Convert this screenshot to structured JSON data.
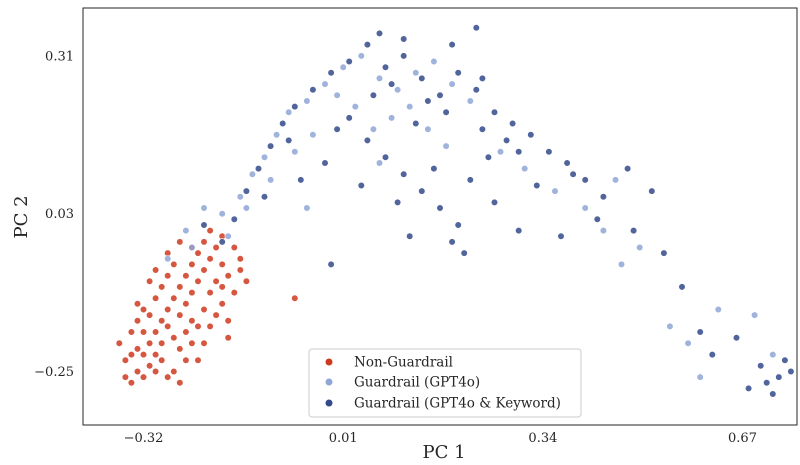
{
  "chart_data": {
    "type": "scatter",
    "xlabel": "PC 1",
    "ylabel": "PC 2",
    "xlim": [
      -0.42,
      0.76
    ],
    "ylim": [
      -0.345,
      0.395
    ],
    "xticks": [
      -0.32,
      0.01,
      0.34,
      0.67
    ],
    "yticks": [
      -0.25,
      0.03,
      0.31
    ],
    "xtick_labels": [
      "−0.32",
      "0.01",
      "0.34",
      "0.67"
    ],
    "ytick_labels": [
      "−0.25",
      "0.03",
      "0.31"
    ],
    "grid": false,
    "legend_placement": "lower-center",
    "series": [
      {
        "name": "Non-Guardrail",
        "color": "#cf3a1f",
        "points": [
          [
            -0.34,
            -0.27
          ],
          [
            -0.33,
            -0.25
          ],
          [
            -0.32,
            -0.22
          ],
          [
            -0.31,
            -0.2
          ],
          [
            -0.3,
            -0.18
          ],
          [
            -0.29,
            -0.16
          ],
          [
            -0.28,
            -0.14
          ],
          [
            -0.27,
            -0.12
          ],
          [
            -0.26,
            -0.1
          ],
          [
            -0.25,
            -0.08
          ],
          [
            -0.24,
            -0.06
          ],
          [
            -0.23,
            -0.04
          ],
          [
            -0.22,
            -0.02
          ],
          [
            -0.21,
            0.0
          ],
          [
            -0.2,
            -0.03
          ],
          [
            -0.19,
            -0.06
          ],
          [
            -0.33,
            -0.21
          ],
          [
            -0.32,
            -0.18
          ],
          [
            -0.31,
            -0.15
          ],
          [
            -0.3,
            -0.12
          ],
          [
            -0.29,
            -0.1
          ],
          [
            -0.28,
            -0.17
          ],
          [
            -0.27,
            -0.19
          ],
          [
            -0.26,
            -0.21
          ],
          [
            -0.25,
            -0.23
          ],
          [
            -0.24,
            -0.2
          ],
          [
            -0.23,
            -0.17
          ],
          [
            -0.22,
            -0.14
          ],
          [
            -0.21,
            -0.11
          ],
          [
            -0.2,
            -0.09
          ],
          [
            -0.19,
            -0.13
          ],
          [
            -0.18,
            -0.16
          ],
          [
            -0.35,
            -0.23
          ],
          [
            -0.36,
            -0.2
          ],
          [
            -0.34,
            -0.18
          ],
          [
            -0.33,
            -0.16
          ],
          [
            -0.32,
            -0.26
          ],
          [
            -0.31,
            -0.24
          ],
          [
            -0.3,
            -0.22
          ],
          [
            -0.29,
            -0.2
          ],
          [
            -0.28,
            -0.08
          ],
          [
            -0.27,
            -0.06
          ],
          [
            -0.26,
            -0.15
          ],
          [
            -0.25,
            -0.13
          ],
          [
            -0.24,
            -0.11
          ],
          [
            -0.23,
            -0.09
          ],
          [
            -0.22,
            -0.07
          ],
          [
            -0.21,
            -0.05
          ],
          [
            -0.2,
            -0.15
          ],
          [
            -0.19,
            -0.1
          ],
          [
            -0.18,
            -0.08
          ],
          [
            -0.17,
            -0.11
          ],
          [
            -0.16,
            -0.07
          ],
          [
            -0.22,
            -0.2
          ],
          [
            -0.23,
            -0.23
          ],
          [
            -0.25,
            -0.18
          ],
          [
            -0.27,
            -0.25
          ],
          [
            -0.29,
            -0.23
          ],
          [
            -0.33,
            -0.13
          ],
          [
            -0.31,
            -0.09
          ],
          [
            -0.3,
            -0.07
          ],
          [
            -0.28,
            -0.04
          ],
          [
            -0.26,
            -0.02
          ],
          [
            -0.24,
            -0.03
          ],
          [
            -0.19,
            -0.01
          ],
          [
            -0.17,
            -0.03
          ],
          [
            -0.16,
            -0.05
          ],
          [
            -0.15,
            -0.09
          ],
          [
            -0.18,
            -0.19
          ],
          [
            -0.21,
            -0.17
          ],
          [
            -0.24,
            -0.16
          ],
          [
            -0.26,
            -0.27
          ],
          [
            -0.28,
            -0.26
          ],
          [
            -0.3,
            -0.25
          ],
          [
            -0.35,
            -0.26
          ],
          [
            -0.34,
            -0.22
          ],
          [
            -0.32,
            -0.14
          ],
          [
            -0.07,
            -0.12
          ]
        ]
      },
      {
        "name": "Guardrail (GPT4o)",
        "color": "#8fa6d6",
        "points": [
          [
            -0.28,
            -0.05
          ],
          [
            -0.25,
            0.0
          ],
          [
            -0.22,
            0.04
          ],
          [
            -0.19,
            0.03
          ],
          [
            -0.16,
            0.06
          ],
          [
            -0.14,
            0.1
          ],
          [
            -0.12,
            0.13
          ],
          [
            -0.1,
            0.17
          ],
          [
            -0.08,
            0.21
          ],
          [
            -0.05,
            0.23
          ],
          [
            -0.02,
            0.26
          ],
          [
            0.01,
            0.29
          ],
          [
            0.04,
            0.31
          ],
          [
            0.07,
            0.27
          ],
          [
            0.1,
            0.25
          ],
          [
            0.13,
            0.28
          ],
          [
            0.16,
            0.3
          ],
          [
            0.19,
            0.26
          ],
          [
            0.22,
            0.23
          ],
          [
            0.03,
            0.22
          ],
          [
            0.06,
            0.18
          ],
          [
            -0.04,
            0.17
          ],
          [
            -0.07,
            0.14
          ],
          [
            0.0,
            0.24
          ],
          [
            0.09,
            0.2
          ],
          [
            0.12,
            0.22
          ],
          [
            0.15,
            0.18
          ],
          [
            -0.15,
            0.04
          ],
          [
            -0.18,
            -0.01
          ],
          [
            -0.24,
            -0.03
          ],
          [
            0.27,
            0.14
          ],
          [
            0.31,
            0.11
          ],
          [
            0.36,
            0.07
          ],
          [
            0.41,
            0.04
          ],
          [
            0.46,
            0.09
          ],
          [
            0.44,
            0.0
          ],
          [
            0.47,
            -0.06
          ],
          [
            0.5,
            -0.03
          ],
          [
            0.55,
            -0.17
          ],
          [
            0.58,
            -0.2
          ],
          [
            0.6,
            -0.26
          ],
          [
            0.63,
            -0.14
          ],
          [
            0.69,
            -0.15
          ],
          [
            0.72,
            -0.22
          ],
          [
            -0.05,
            0.04
          ],
          [
            0.07,
            0.12
          ],
          [
            0.18,
            0.15
          ],
          [
            -0.11,
            0.09
          ]
        ]
      },
      {
        "name": "Guardrail (GPT4o & Keyword)",
        "color": "#33498a",
        "points": [
          [
            -0.22,
            0.01
          ],
          [
            -0.19,
            -0.02
          ],
          [
            -0.17,
            0.02
          ],
          [
            -0.15,
            0.07
          ],
          [
            -0.13,
            0.11
          ],
          [
            -0.11,
            0.15
          ],
          [
            -0.09,
            0.19
          ],
          [
            -0.07,
            0.22
          ],
          [
            -0.04,
            0.25
          ],
          [
            -0.01,
            0.28
          ],
          [
            0.02,
            0.3
          ],
          [
            0.05,
            0.33
          ],
          [
            0.08,
            0.29
          ],
          [
            0.11,
            0.31
          ],
          [
            0.14,
            0.27
          ],
          [
            0.17,
            0.24
          ],
          [
            0.2,
            0.28
          ],
          [
            0.23,
            0.25
          ],
          [
            0.26,
            0.21
          ],
          [
            0.29,
            0.19
          ],
          [
            0.32,
            0.17
          ],
          [
            0.35,
            0.14
          ],
          [
            0.38,
            0.12
          ],
          [
            0.41,
            0.09
          ],
          [
            0.44,
            0.06
          ],
          [
            0.02,
            0.2
          ],
          [
            0.05,
            0.16
          ],
          [
            0.08,
            0.13
          ],
          [
            0.11,
            0.1
          ],
          [
            0.14,
            0.07
          ],
          [
            0.17,
            0.04
          ],
          [
            0.2,
            0.01
          ],
          [
            -0.02,
            0.12
          ],
          [
            -0.06,
            0.09
          ],
          [
            0.1,
            0.05
          ],
          [
            0.22,
            0.09
          ],
          [
            0.25,
            0.13
          ],
          [
            0.28,
            0.16
          ],
          [
            0.06,
            0.24
          ],
          [
            0.13,
            0.19
          ],
          [
            0.18,
            0.21
          ],
          [
            0.24,
            0.18
          ],
          [
            0.3,
            0.14
          ],
          [
            0.09,
            0.26
          ],
          [
            0.15,
            0.23
          ],
          [
            0.0,
            0.18
          ],
          [
            -0.08,
            0.16
          ],
          [
            -0.12,
            0.06
          ],
          [
            0.04,
            0.08
          ],
          [
            0.16,
            0.11
          ],
          [
            0.26,
            0.05
          ],
          [
            0.33,
            0.08
          ],
          [
            0.39,
            0.1
          ],
          [
            0.43,
            0.02
          ],
          [
            0.48,
            0.11
          ],
          [
            0.52,
            0.07
          ],
          [
            0.49,
            0.0
          ],
          [
            0.54,
            -0.04
          ],
          [
            0.57,
            -0.1
          ],
          [
            0.6,
            -0.18
          ],
          [
            0.62,
            -0.22
          ],
          [
            0.66,
            -0.19
          ],
          [
            0.7,
            -0.24
          ],
          [
            0.71,
            -0.27
          ],
          [
            0.73,
            -0.26
          ],
          [
            0.74,
            -0.23
          ],
          [
            0.68,
            -0.28
          ],
          [
            0.72,
            -0.29
          ],
          [
            0.75,
            -0.25
          ],
          [
            0.12,
            -0.01
          ],
          [
            -0.01,
            -0.06
          ],
          [
            0.19,
            -0.02
          ],
          [
            0.21,
            -0.04
          ],
          [
            0.3,
            0.0
          ],
          [
            0.37,
            -0.01
          ],
          [
            0.24,
            0.27
          ],
          [
            0.19,
            0.33
          ],
          [
            0.23,
            0.36
          ],
          [
            0.11,
            0.34
          ],
          [
            0.07,
            0.35
          ]
        ]
      }
    ]
  }
}
